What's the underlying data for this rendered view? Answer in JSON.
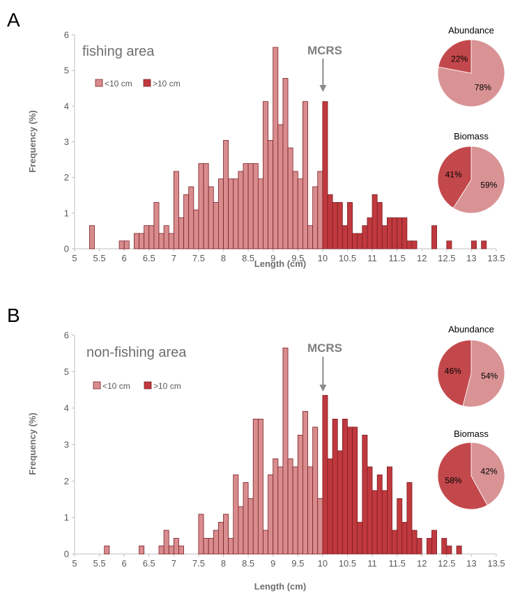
{
  "colors": {
    "below": "#d98c8e",
    "above": "#c0393e",
    "bar_edge": "#7a1f24",
    "pie_light": "#d99395",
    "pie_dark": "#c3484b",
    "axis": "#bfbfbf",
    "tick_text": "#595959",
    "label_text": "#6e6e6e",
    "arrow": "#8a8a8a"
  },
  "chart_data": [
    {
      "panel_label": "A",
      "type": "bar",
      "area_label": "fishing area",
      "xlabel": "Length (cm)",
      "ylabel": "Frequency (%)",
      "xlim": [
        5,
        13.5
      ],
      "ylim": [
        0,
        6
      ],
      "xticks": [
        "5",
        "5.5",
        "6",
        "6.5",
        "7",
        "7.5",
        "8",
        "8.5",
        "9",
        "9.5",
        "10",
        "10.5",
        "11",
        "11.5",
        "12",
        "12.5",
        "13",
        "13.5"
      ],
      "yticks": [
        "0",
        "1",
        "2",
        "3",
        "4",
        "5",
        "6"
      ],
      "bin_width": 0.1,
      "split_at": 10,
      "legend": {
        "below_label": "<10 cm",
        "above_label": ">10 cm"
      },
      "mcrs_label": "MCRS",
      "mcrs_x": 10,
      "bins": [
        {
          "x": 5.3,
          "y": 0.65
        },
        {
          "x": 5.9,
          "y": 0.22
        },
        {
          "x": 6.0,
          "y": 0.22
        },
        {
          "x": 6.2,
          "y": 0.43
        },
        {
          "x": 6.3,
          "y": 0.43
        },
        {
          "x": 6.4,
          "y": 0.65
        },
        {
          "x": 6.5,
          "y": 0.65
        },
        {
          "x": 6.6,
          "y": 1.3
        },
        {
          "x": 6.7,
          "y": 0.43
        },
        {
          "x": 6.8,
          "y": 0.65
        },
        {
          "x": 6.9,
          "y": 0.43
        },
        {
          "x": 7.0,
          "y": 2.17
        },
        {
          "x": 7.1,
          "y": 0.87
        },
        {
          "x": 7.2,
          "y": 1.52
        },
        {
          "x": 7.3,
          "y": 1.74
        },
        {
          "x": 7.4,
          "y": 1.09
        },
        {
          "x": 7.5,
          "y": 2.39
        },
        {
          "x": 7.6,
          "y": 2.39
        },
        {
          "x": 7.7,
          "y": 1.74
        },
        {
          "x": 7.8,
          "y": 1.3
        },
        {
          "x": 7.9,
          "y": 1.96
        },
        {
          "x": 8.0,
          "y": 3.04
        },
        {
          "x": 8.1,
          "y": 1.96
        },
        {
          "x": 8.2,
          "y": 1.96
        },
        {
          "x": 8.3,
          "y": 2.17
        },
        {
          "x": 8.4,
          "y": 2.39
        },
        {
          "x": 8.5,
          "y": 2.39
        },
        {
          "x": 8.6,
          "y": 2.39
        },
        {
          "x": 8.7,
          "y": 1.96
        },
        {
          "x": 8.8,
          "y": 4.13
        },
        {
          "x": 8.9,
          "y": 3.04
        },
        {
          "x": 9.0,
          "y": 5.65
        },
        {
          "x": 9.1,
          "y": 3.48
        },
        {
          "x": 9.2,
          "y": 4.78
        },
        {
          "x": 9.3,
          "y": 2.83
        },
        {
          "x": 9.4,
          "y": 2.17
        },
        {
          "x": 9.5,
          "y": 1.96
        },
        {
          "x": 9.6,
          "y": 4.13
        },
        {
          "x": 9.7,
          "y": 0.65
        },
        {
          "x": 9.8,
          "y": 1.74
        },
        {
          "x": 9.9,
          "y": 2.17
        },
        {
          "x": 10.0,
          "y": 4.13
        },
        {
          "x": 10.1,
          "y": 1.52
        },
        {
          "x": 10.2,
          "y": 1.3
        },
        {
          "x": 10.3,
          "y": 1.3
        },
        {
          "x": 10.4,
          "y": 0.65
        },
        {
          "x": 10.5,
          "y": 1.3
        },
        {
          "x": 10.6,
          "y": 0.43
        },
        {
          "x": 10.7,
          "y": 0.43
        },
        {
          "x": 10.8,
          "y": 0.65
        },
        {
          "x": 10.9,
          "y": 0.87
        },
        {
          "x": 11.0,
          "y": 1.52
        },
        {
          "x": 11.1,
          "y": 1.3
        },
        {
          "x": 11.2,
          "y": 0.65
        },
        {
          "x": 11.3,
          "y": 0.87
        },
        {
          "x": 11.4,
          "y": 0.87
        },
        {
          "x": 11.5,
          "y": 0.87
        },
        {
          "x": 11.6,
          "y": 0.87
        },
        {
          "x": 11.7,
          "y": 0.22
        },
        {
          "x": 11.8,
          "y": 0.22
        },
        {
          "x": 12.2,
          "y": 0.65
        },
        {
          "x": 12.5,
          "y": 0.22
        },
        {
          "x": 13.0,
          "y": 0.22
        },
        {
          "x": 13.2,
          "y": 0.22
        }
      ],
      "pies": [
        {
          "title": "Abundance",
          "slices": [
            {
              "label": "22%",
              "value": 22,
              "group": "above"
            },
            {
              "label": "78%",
              "value": 78,
              "group": "below"
            }
          ]
        },
        {
          "title": "Biomass",
          "slices": [
            {
              "label": "41%",
              "value": 41,
              "group": "above"
            },
            {
              "label": "59%",
              "value": 59,
              "group": "below"
            }
          ]
        }
      ]
    },
    {
      "panel_label": "B",
      "type": "bar",
      "area_label": "non-fishing area",
      "xlabel": "Length (cm)",
      "ylabel": "Frequency (%)",
      "xlim": [
        5,
        13.5
      ],
      "ylim": [
        0,
        6
      ],
      "xticks": [
        "5",
        "5.5",
        "6",
        "6.5",
        "7",
        "7.5",
        "8",
        "8.5",
        "9",
        "9.5",
        "10",
        "10.5",
        "11",
        "11.5",
        "12",
        "12.5",
        "13",
        "13.5"
      ],
      "yticks": [
        "0",
        "1",
        "2",
        "3",
        "4",
        "5",
        "6"
      ],
      "bin_width": 0.1,
      "split_at": 10,
      "legend": {
        "below_label": "<10 cm",
        "above_label": ">10 cm"
      },
      "mcrs_label": "MCRS",
      "mcrs_x": 10,
      "bins": [
        {
          "x": 5.6,
          "y": 0.22
        },
        {
          "x": 6.3,
          "y": 0.22
        },
        {
          "x": 6.7,
          "y": 0.22
        },
        {
          "x": 6.8,
          "y": 0.65
        },
        {
          "x": 6.9,
          "y": 0.22
        },
        {
          "x": 7.0,
          "y": 0.43
        },
        {
          "x": 7.1,
          "y": 0.22
        },
        {
          "x": 7.5,
          "y": 1.09
        },
        {
          "x": 7.6,
          "y": 0.43
        },
        {
          "x": 7.7,
          "y": 0.43
        },
        {
          "x": 7.8,
          "y": 0.65
        },
        {
          "x": 7.9,
          "y": 0.87
        },
        {
          "x": 8.0,
          "y": 1.09
        },
        {
          "x": 8.1,
          "y": 0.43
        },
        {
          "x": 8.2,
          "y": 2.17
        },
        {
          "x": 8.3,
          "y": 1.3
        },
        {
          "x": 8.4,
          "y": 1.96
        },
        {
          "x": 8.5,
          "y": 1.52
        },
        {
          "x": 8.6,
          "y": 3.7
        },
        {
          "x": 8.7,
          "y": 3.7
        },
        {
          "x": 8.8,
          "y": 0.65
        },
        {
          "x": 8.9,
          "y": 2.17
        },
        {
          "x": 9.0,
          "y": 2.61
        },
        {
          "x": 9.1,
          "y": 2.39
        },
        {
          "x": 9.2,
          "y": 5.65
        },
        {
          "x": 9.3,
          "y": 2.61
        },
        {
          "x": 9.4,
          "y": 2.39
        },
        {
          "x": 9.5,
          "y": 3.26
        },
        {
          "x": 9.6,
          "y": 3.91
        },
        {
          "x": 9.7,
          "y": 2.39
        },
        {
          "x": 9.8,
          "y": 3.48
        },
        {
          "x": 9.9,
          "y": 1.52
        },
        {
          "x": 10.0,
          "y": 4.35
        },
        {
          "x": 10.1,
          "y": 2.61
        },
        {
          "x": 10.2,
          "y": 3.7
        },
        {
          "x": 10.3,
          "y": 2.83
        },
        {
          "x": 10.4,
          "y": 3.7
        },
        {
          "x": 10.5,
          "y": 3.48
        },
        {
          "x": 10.6,
          "y": 3.48
        },
        {
          "x": 10.7,
          "y": 0.87
        },
        {
          "x": 10.8,
          "y": 3.26
        },
        {
          "x": 10.9,
          "y": 2.39
        },
        {
          "x": 11.0,
          "y": 1.74
        },
        {
          "x": 11.1,
          "y": 2.17
        },
        {
          "x": 11.2,
          "y": 1.74
        },
        {
          "x": 11.3,
          "y": 2.39
        },
        {
          "x": 11.4,
          "y": 0.65
        },
        {
          "x": 11.5,
          "y": 1.52
        },
        {
          "x": 11.6,
          "y": 0.87
        },
        {
          "x": 11.7,
          "y": 1.96
        },
        {
          "x": 11.8,
          "y": 0.65
        },
        {
          "x": 11.9,
          "y": 0.43
        },
        {
          "x": 12.1,
          "y": 0.43
        },
        {
          "x": 12.2,
          "y": 0.65
        },
        {
          "x": 12.4,
          "y": 0.43
        },
        {
          "x": 12.5,
          "y": 0.22
        },
        {
          "x": 12.7,
          "y": 0.22
        }
      ],
      "pies": [
        {
          "title": "Abundance",
          "slices": [
            {
              "label": "46%",
              "value": 46,
              "group": "above"
            },
            {
              "label": "54%",
              "value": 54,
              "group": "below"
            }
          ]
        },
        {
          "title": "Biomass",
          "slices": [
            {
              "label": "58%",
              "value": 58,
              "group": "above"
            },
            {
              "label": "42%",
              "value": 42,
              "group": "below"
            }
          ]
        }
      ]
    }
  ]
}
